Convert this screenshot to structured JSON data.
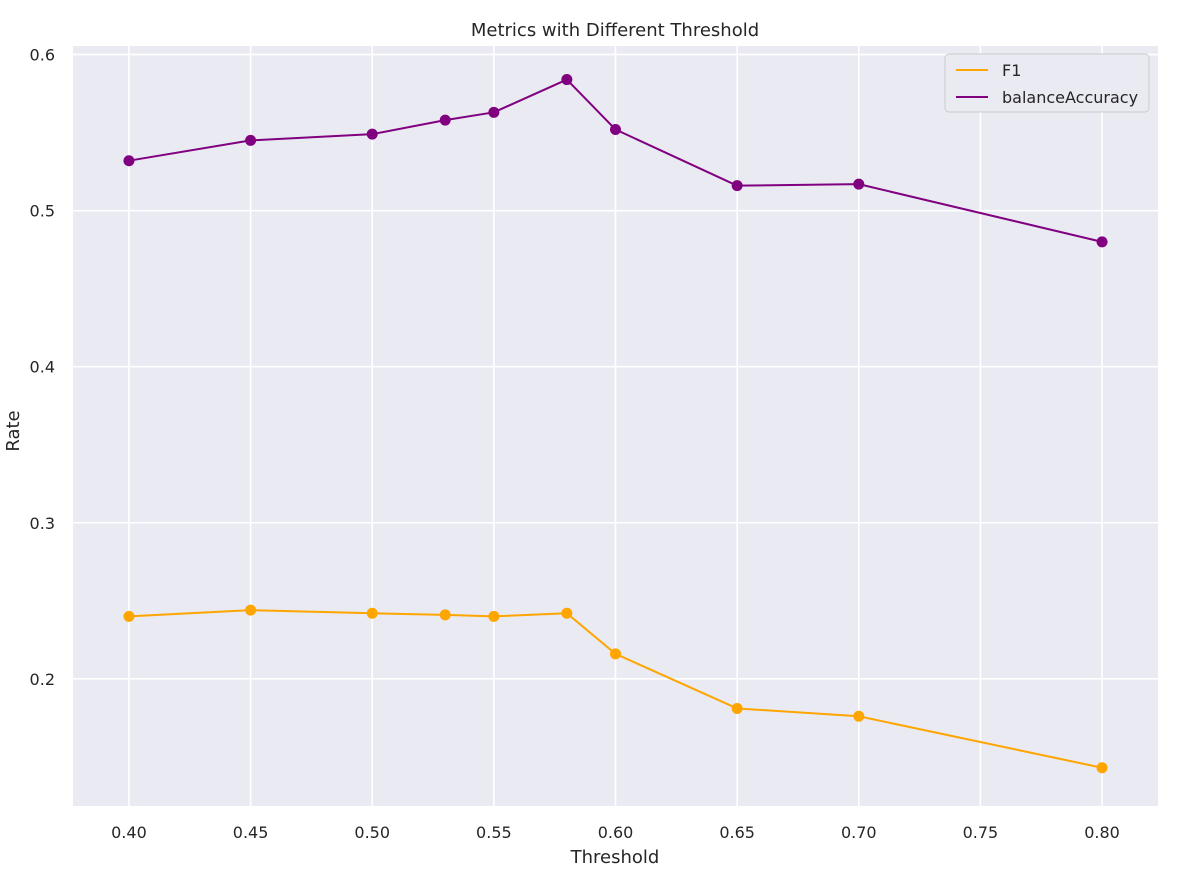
{
  "chart_data": {
    "type": "line",
    "title": "Metrics with Different Threshold",
    "xlabel": "Threshold",
    "ylabel": "Rate",
    "xlim": [
      0.377,
      0.823
    ],
    "ylim": [
      0.1185,
      0.6055
    ],
    "xticks": [
      "0.40",
      "0.45",
      "0.50",
      "0.55",
      "0.60",
      "0.65",
      "0.70",
      "0.75",
      "0.80"
    ],
    "yticks": [
      "0.2",
      "0.3",
      "0.4",
      "0.5",
      "0.6"
    ],
    "grid": true,
    "legend_position": "top-right",
    "x": [
      0.4,
      0.45,
      0.5,
      0.53,
      0.55,
      0.58,
      0.6,
      0.65,
      0.7,
      0.8
    ],
    "series": [
      {
        "name": "F1",
        "color": "#ffa500",
        "values": [
          0.24,
          0.244,
          0.242,
          0.241,
          0.24,
          0.242,
          0.216,
          0.181,
          0.176,
          0.143
        ]
      },
      {
        "name": "balanceAccuracy",
        "color": "#800080",
        "values": [
          0.532,
          0.545,
          0.549,
          0.558,
          0.563,
          0.584,
          0.552,
          0.516,
          0.517,
          0.48
        ]
      }
    ]
  }
}
